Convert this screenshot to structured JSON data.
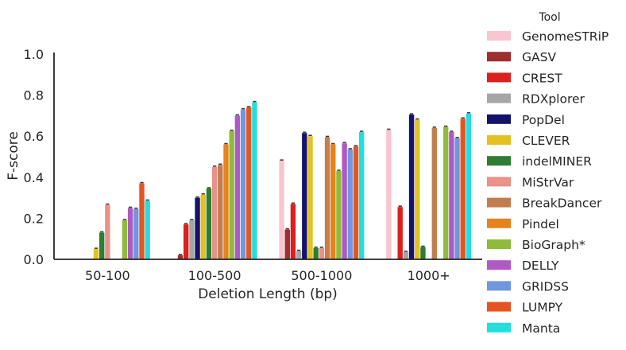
{
  "chart_data": {
    "type": "bar",
    "title": "",
    "xlabel": "Deletion Length (bp)",
    "ylabel": "F-score",
    "ylim": [
      0,
      1.0
    ],
    "yticks": [
      "0.0",
      "0.2",
      "0.4",
      "0.6",
      "0.8",
      "1.0"
    ],
    "grid": false,
    "legend_position": "right",
    "legend_title": "Tool",
    "categories": [
      "50-100",
      "100-500",
      "500-1000",
      "1000+"
    ],
    "series": [
      {
        "name": "GenomeSTRiP",
        "color": "#f9c5cf",
        "values": [
          0,
          0,
          0.48,
          0.63
        ]
      },
      {
        "name": "GASV",
        "color": "#9e2f30",
        "values": [
          0,
          0.02,
          0.145,
          0
        ]
      },
      {
        "name": "CREST",
        "color": "#dc1f1f",
        "values": [
          0,
          0.17,
          0.27,
          0.255
        ]
      },
      {
        "name": "RDXplorer",
        "color": "#a6a6a6",
        "values": [
          0,
          0.19,
          0.04,
          0.035
        ]
      },
      {
        "name": "PopDel",
        "color": "#13136b",
        "values": [
          0,
          0.3,
          0.615,
          0.705
        ]
      },
      {
        "name": "CLEVER",
        "color": "#e5c022",
        "values": [
          0.05,
          0.315,
          0.6,
          0.68
        ]
      },
      {
        "name": "indelMINER",
        "color": "#2e7d32",
        "values": [
          0.13,
          0.345,
          0.055,
          0.06
        ]
      },
      {
        "name": "MiStrVar",
        "color": "#e8928a",
        "values": [
          0.265,
          0.45,
          0.055,
          0
        ]
      },
      {
        "name": "BreakDancer",
        "color": "#c27e4f",
        "values": [
          0,
          0.46,
          0.595,
          0.64
        ]
      },
      {
        "name": "Pindel",
        "color": "#e5831d",
        "values": [
          0,
          0.56,
          0.56,
          0
        ]
      },
      {
        "name": "BioGraph*",
        "color": "#8fba3a",
        "values": [
          0.19,
          0.625,
          0.43,
          0.645
        ]
      },
      {
        "name": "DELLY",
        "color": "#ae5ac5",
        "values": [
          0.25,
          0.7,
          0.565,
          0.62
        ]
      },
      {
        "name": "GRIDSS",
        "color": "#6f97db",
        "values": [
          0.245,
          0.73,
          0.535,
          0.59
        ]
      },
      {
        "name": "LUMPY",
        "color": "#e55523",
        "values": [
          0.37,
          0.74,
          0.55,
          0.685
        ]
      },
      {
        "name": "Manta",
        "color": "#22dedd",
        "values": [
          0.285,
          0.765,
          0.62,
          0.71
        ]
      }
    ]
  }
}
